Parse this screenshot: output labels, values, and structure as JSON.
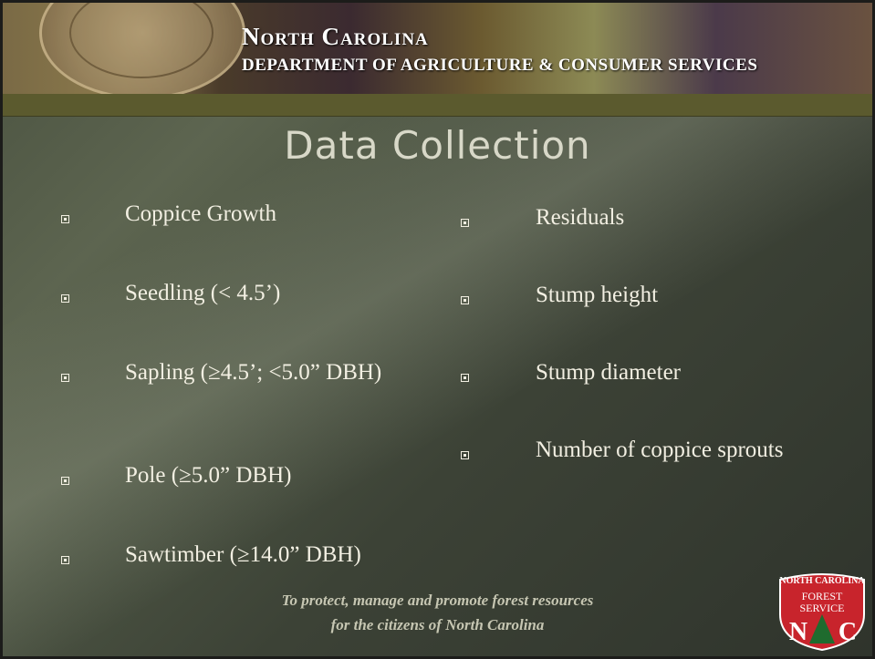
{
  "header": {
    "title": "North Carolina",
    "subtitle": "DEPARTMENT OF AGRICULTURE & CONSUMER SERVICES"
  },
  "slide": {
    "title": "Data Collection",
    "left_items": [
      "Coppice Growth",
      "Seedling (< 4.5’)",
      "Sapling (≥4.5’; <5.0” DBH)",
      "Pole (≥5.0” DBH)",
      "Sawtimber (≥14.0” DBH)"
    ],
    "right_items": [
      "Residuals",
      "Stump height",
      "Stump diameter",
      "Number of coppice sprouts"
    ]
  },
  "footer": {
    "line1": "To protect, manage and promote forest resources",
    "line2": "for the citizens of North Carolina"
  },
  "logo": {
    "top": "NORTH CAROLINA",
    "line1": "FOREST",
    "line2": "SERVICE",
    "left": "N",
    "right": "C"
  }
}
